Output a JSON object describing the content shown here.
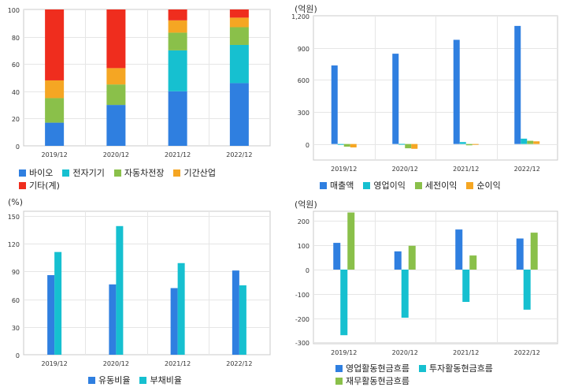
{
  "colors": {
    "blue": "#2f7fe0",
    "cyan": "#16c0d0",
    "green": "#8ac04a",
    "orange": "#f5a623",
    "red": "#ef2d1e",
    "grid": "#e6e6e6",
    "frame": "#c8c8c8"
  },
  "chart_data": [
    {
      "id": "sales-composition",
      "type": "bar",
      "stacked": true,
      "unit": "",
      "categories": [
        "2019/12",
        "2020/12",
        "2021/12",
        "2022/12"
      ],
      "ylim": [
        0,
        100
      ],
      "yticks": [
        0,
        20,
        40,
        60,
        80,
        100
      ],
      "series": [
        {
          "name": "바이오",
          "color": "#2f7fe0",
          "values": [
            17,
            30,
            40,
            46
          ]
        },
        {
          "name": "전자기기",
          "color": "#16c0d0",
          "values": [
            0,
            0,
            30,
            28
          ]
        },
        {
          "name": "자동차전장",
          "color": "#8ac04a",
          "values": [
            18,
            15,
            13,
            13
          ]
        },
        {
          "name": "기간산업",
          "color": "#f5a623",
          "values": [
            13,
            12,
            9,
            7
          ]
        },
        {
          "name": "기타(계)",
          "color": "#ef2d1e",
          "values": [
            52,
            43,
            8,
            6
          ]
        }
      ],
      "grid": true
    },
    {
      "id": "income",
      "type": "bar",
      "stacked": false,
      "unit": "(억원)",
      "categories": [
        "2019/12",
        "2020/12",
        "2021/12",
        "2022/12"
      ],
      "ylim": [
        -150,
        1200
      ],
      "yticks": [
        0,
        300,
        600,
        900,
        1200
      ],
      "ytick_labels": [
        "0",
        "300",
        "600",
        "900",
        "1,200"
      ],
      "series": [
        {
          "name": "매출액",
          "color": "#2f7fe0",
          "values": [
            735,
            845,
            975,
            1105
          ]
        },
        {
          "name": "영업이익",
          "color": "#16c0d0",
          "values": [
            -2,
            1,
            18,
            50
          ]
        },
        {
          "name": "세전이익",
          "color": "#8ac04a",
          "values": [
            -25,
            -40,
            -12,
            30
          ]
        },
        {
          "name": "순이익",
          "color": "#f5a623",
          "values": [
            -32,
            -45,
            -3,
            25
          ]
        }
      ],
      "grid": true
    },
    {
      "id": "ratios",
      "type": "bar",
      "stacked": false,
      "unit": "(%)",
      "categories": [
        "2019/12",
        "2020/12",
        "2021/12",
        "2022/12"
      ],
      "ylim": [
        0,
        155
      ],
      "yticks": [
        0,
        30,
        60,
        90,
        120,
        150
      ],
      "series": [
        {
          "name": "유동비율",
          "color": "#2f7fe0",
          "values": [
            86,
            76,
            72,
            91
          ]
        },
        {
          "name": "부채비율",
          "color": "#16c0d0",
          "values": [
            111,
            139,
            99,
            75
          ]
        }
      ],
      "grid": true
    },
    {
      "id": "cash-flow",
      "type": "bar",
      "stacked": false,
      "unit": "(억원)",
      "categories": [
        "2019/12",
        "2020/12",
        "2021/12",
        "2022/12"
      ],
      "ylim": [
        -305,
        240
      ],
      "yticks": [
        -300,
        -200,
        -100,
        0,
        100,
        200
      ],
      "series": [
        {
          "name": "영업활동현금흐름",
          "color": "#2f7fe0",
          "values": [
            110,
            75,
            165,
            128
          ]
        },
        {
          "name": "투자활동현금흐름",
          "color": "#16c0d0",
          "values": [
            -270,
            -198,
            -133,
            -165
          ]
        },
        {
          "name": "재무활동현금흐름",
          "color": "#8ac04a",
          "values": [
            235,
            98,
            58,
            152
          ]
        }
      ],
      "grid": true
    }
  ]
}
